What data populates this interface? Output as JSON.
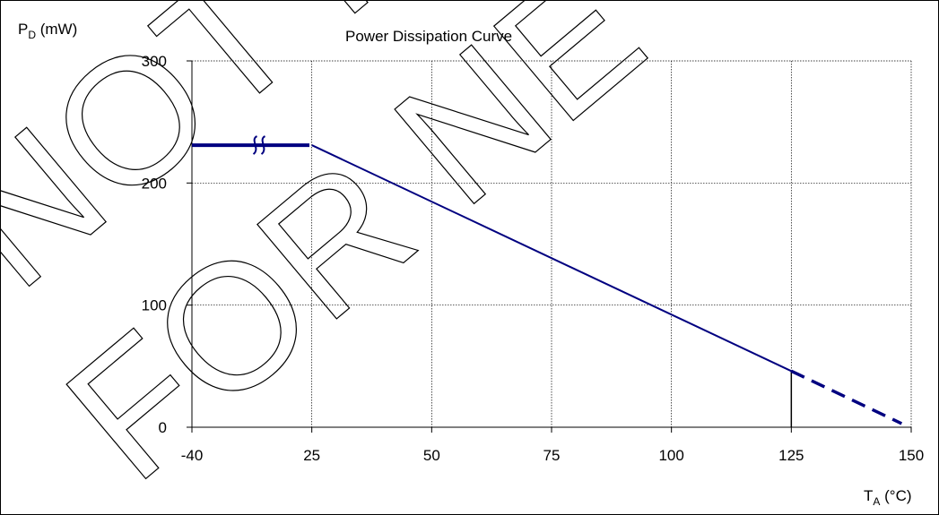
{
  "chart_data": {
    "type": "line",
    "title": "Power Dissipation Curve",
    "ylabel": {
      "main": "P",
      "sub": "D",
      "unit": " (mW)"
    },
    "xlabel": {
      "main": "T",
      "sub": "A",
      "unit": " (°C)"
    },
    "x_ticks": [
      "-40",
      "25",
      "50",
      "75",
      "100",
      "125",
      "150"
    ],
    "x_tick_values": [
      0,
      25,
      50,
      75,
      100,
      125,
      150
    ],
    "y_ticks": [
      "0",
      "100",
      "200",
      "300"
    ],
    "y_tick_values": [
      0,
      100,
      200,
      300
    ],
    "xlim": [
      0,
      150
    ],
    "ylim": [
      0,
      300
    ],
    "grid": true,
    "series": [
      {
        "points": [
          [
            0,
            231
          ],
          [
            24.5,
            231
          ]
        ],
        "style": "solid-thick",
        "color": "#000080",
        "break_mark_x": 13
      },
      {
        "points": [
          [
            25,
            231
          ],
          [
            125,
            46
          ]
        ],
        "style": "solid",
        "color": "#000080"
      },
      {
        "points": [
          [
            125,
            46
          ],
          [
            148,
            3
          ]
        ],
        "style": "dashed",
        "color": "#000080"
      }
    ],
    "marker_line": {
      "x": 125,
      "y_from": 0,
      "y_to": 46,
      "color": "#000000"
    }
  },
  "watermark": {
    "lines": [
      "NOT RE",
      "FOR NE"
    ]
  }
}
